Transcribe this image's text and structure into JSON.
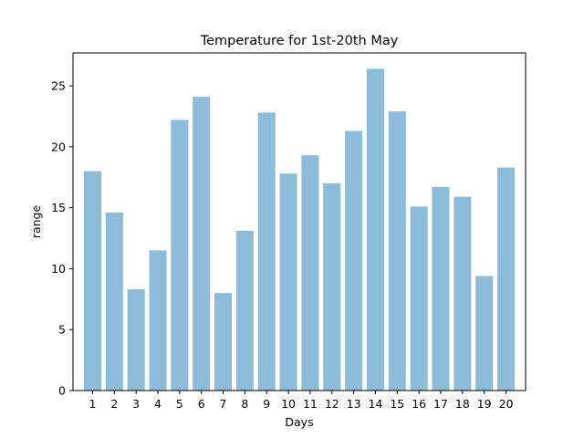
{
  "chart_data": {
    "type": "bar",
    "title": "Temperature for 1st-20th May",
    "xlabel": "Days",
    "ylabel": "range",
    "categories": [
      "1",
      "2",
      "3",
      "4",
      "5",
      "6",
      "7",
      "8",
      "9",
      "10",
      "11",
      "12",
      "13",
      "14",
      "15",
      "16",
      "17",
      "18",
      "19",
      "20"
    ],
    "values": [
      18.0,
      14.6,
      8.3,
      11.5,
      22.2,
      24.1,
      8.0,
      13.1,
      22.8,
      17.8,
      19.3,
      17.0,
      21.3,
      26.4,
      22.9,
      15.1,
      16.7,
      15.9,
      9.4,
      18.3
    ],
    "ylim": [
      0,
      27.7
    ],
    "yticks": [
      0,
      5,
      10,
      15,
      20,
      25
    ],
    "ytick_labels": [
      "0",
      "5",
      "10",
      "15",
      "20",
      "25"
    ],
    "bar_color": "#8dbbda",
    "grid": false,
    "legend": "none"
  }
}
